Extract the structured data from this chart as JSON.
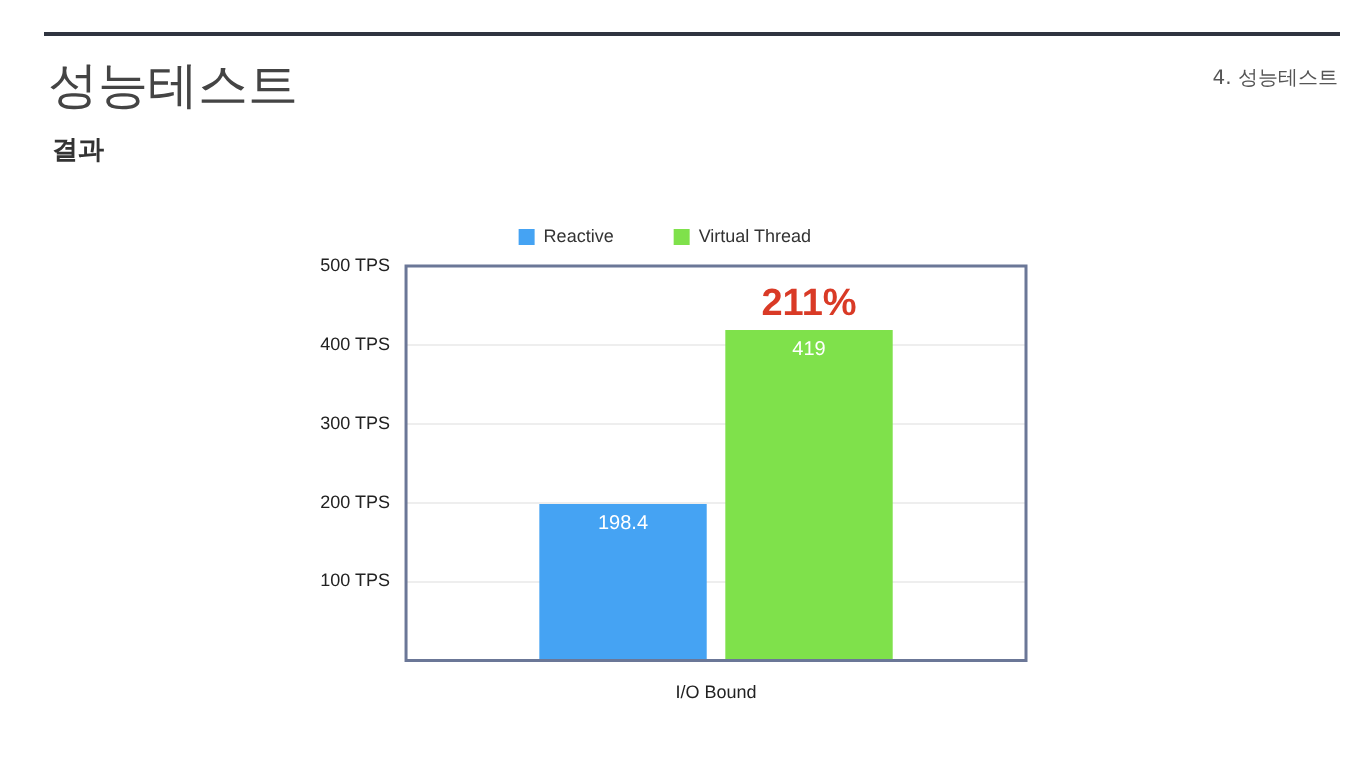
{
  "chart_data": {
    "type": "bar",
    "title": "성능테스트",
    "subtitle": "결과",
    "annotations": [
      "4. 성능테스트",
      {
        "text": "211%",
        "x": "I/O Bound",
        "y": 419
      }
    ],
    "categories": [
      "I/O Bound"
    ],
    "series": [
      {
        "name": "Reactive",
        "color": "#45a3f3",
        "values": [
          198.4
        ]
      },
      {
        "name": "Virtual Thread",
        "color": "#7fe14b",
        "values": [
          419
        ]
      }
    ],
    "ylim": [
      0,
      500
    ],
    "yticks": [
      {
        "value": 0,
        "label": null
      },
      {
        "value": 100,
        "label": "100 TPS"
      },
      {
        "value": 200,
        "label": "200 TPS"
      },
      {
        "value": 300,
        "label": "300 TPS"
      },
      {
        "value": 400,
        "label": "400 TPS"
      },
      {
        "value": 500,
        "label": "500 TPS"
      }
    ],
    "grid": "y",
    "legend": "top",
    "data_labels": true
  }
}
